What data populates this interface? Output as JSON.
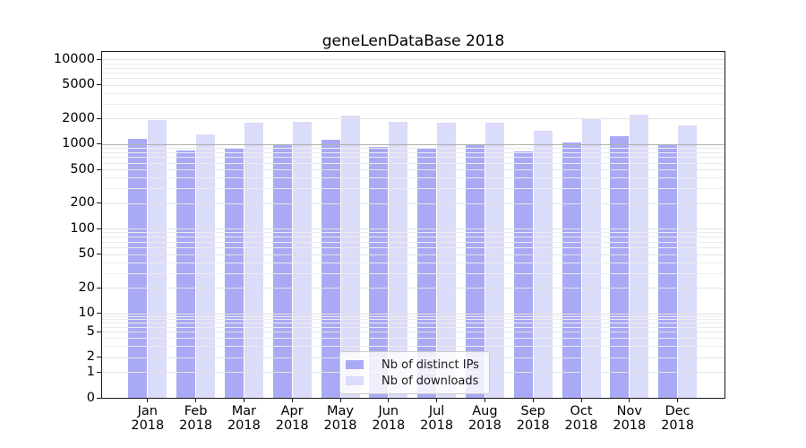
{
  "title": "geneLenDataBase 2018",
  "chart_data": {
    "type": "bar",
    "title": "geneLenDataBase 2018",
    "categories": [
      "Jan 2018",
      "Feb 2018",
      "Mar 2018",
      "Apr 2018",
      "May 2018",
      "Jun 2018",
      "Jul 2018",
      "Aug 2018",
      "Sep 2018",
      "Oct 2018",
      "Nov 2018",
      "Dec 2018"
    ],
    "x_tick_labels": [
      [
        "Jan",
        "2018"
      ],
      [
        "Feb",
        "2018"
      ],
      [
        "Mar",
        "2018"
      ],
      [
        "Apr",
        "2018"
      ],
      [
        "May",
        "2018"
      ],
      [
        "Jun",
        "2018"
      ],
      [
        "Jul",
        "2018"
      ],
      [
        "Aug",
        "2018"
      ],
      [
        "Sep",
        "2018"
      ],
      [
        "Oct",
        "2018"
      ],
      [
        "Nov",
        "2018"
      ],
      [
        "Dec",
        "2018"
      ]
    ],
    "series": [
      {
        "name": "Nb of distinct IPs",
        "color": "#a9a9f5",
        "values": [
          1150,
          830,
          905,
          990,
          1130,
          930,
          900,
          975,
          825,
          1040,
          1250,
          960
        ]
      },
      {
        "name": "Nb of downloads",
        "color": "#dbdbfa",
        "values": [
          1900,
          1300,
          1780,
          1850,
          2150,
          1850,
          1780,
          1800,
          1450,
          1950,
          2250,
          1650
        ]
      }
    ],
    "yscale": "symlog",
    "y_ticks": [
      0,
      1,
      2,
      5,
      10,
      20,
      50,
      100,
      200,
      500,
      1000,
      2000,
      5000,
      10000
    ],
    "ylim": [
      0,
      11400
    ],
    "grid": true,
    "legend_position": "lower center"
  },
  "colors": {
    "bar_ips": "#a9a9f5",
    "bar_downloads": "#dbdbfa",
    "grid_minor": "#ececec",
    "grid_major": "#e3e3e3",
    "grid_emphasis_1000": "#b0b0b0",
    "axis": "#1a1a1a",
    "legend_border": "#cccccc"
  }
}
